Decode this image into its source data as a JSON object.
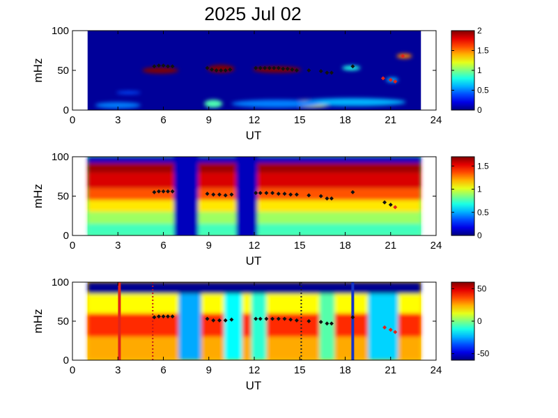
{
  "chart_data": {
    "title": "2025 Jul 02",
    "type": "heatmap",
    "panels": [
      {
        "id": "panel-1",
        "xlabel": "UT",
        "ylabel": "mHz",
        "xlim": [
          0,
          24
        ],
        "ylim": [
          0,
          100
        ],
        "xticks": [
          "0",
          "3",
          "6",
          "9",
          "12",
          "15",
          "18",
          "21",
          "24"
        ],
        "yticks": [
          "0",
          "50",
          "100"
        ],
        "colorbar": {
          "min": 0,
          "max": 2,
          "ticks": [
            "0",
            "0.5",
            "1",
            "1.5",
            "2"
          ]
        },
        "data_coverage_ut": [
          1,
          23
        ],
        "background_value": 0.05,
        "blobs": [
          {
            "x": 5.8,
            "y": 50,
            "w": 1.2,
            "h": 4,
            "v": 2.0
          },
          {
            "x": 9.8,
            "y": 52,
            "w": 0.9,
            "h": 5,
            "v": 2.0
          },
          {
            "x": 13.5,
            "y": 51,
            "w": 1.6,
            "h": 4,
            "v": 2.0
          },
          {
            "x": 9.3,
            "y": 8,
            "w": 0.6,
            "h": 5,
            "v": 0.9
          },
          {
            "x": 15.6,
            "y": 8,
            "w": 1.6,
            "h": 5,
            "v": 1.2
          },
          {
            "x": 18.5,
            "y": 10,
            "w": 3.5,
            "h": 5,
            "v": 0.6
          },
          {
            "x": 13.5,
            "y": 8,
            "w": 3.0,
            "h": 5,
            "v": 0.5
          },
          {
            "x": 3.0,
            "y": 6,
            "w": 1.5,
            "h": 4,
            "v": 0.5
          },
          {
            "x": 21.9,
            "y": 68,
            "w": 0.5,
            "h": 3,
            "v": 1.5
          },
          {
            "x": 18.4,
            "y": 53,
            "w": 0.6,
            "h": 3,
            "v": 0.8
          },
          {
            "x": 21.1,
            "y": 38,
            "w": 0.4,
            "h": 3,
            "v": 0.6
          },
          {
            "x": 3.7,
            "y": 22,
            "w": 0.8,
            "h": 2,
            "v": 0.4
          }
        ],
        "markers": [
          {
            "ut": 5.4,
            "f": 55
          },
          {
            "ut": 5.7,
            "f": 56
          },
          {
            "ut": 6.0,
            "f": 56
          },
          {
            "ut": 6.3,
            "f": 55
          },
          {
            "ut": 6.6,
            "f": 55
          },
          {
            "ut": 8.9,
            "f": 53
          },
          {
            "ut": 9.2,
            "f": 51
          },
          {
            "ut": 9.5,
            "f": 50
          },
          {
            "ut": 9.8,
            "f": 50
          },
          {
            "ut": 10.1,
            "f": 50
          },
          {
            "ut": 10.4,
            "f": 51
          },
          {
            "ut": 12.1,
            "f": 53
          },
          {
            "ut": 12.4,
            "f": 53
          },
          {
            "ut": 12.7,
            "f": 53
          },
          {
            "ut": 13.0,
            "f": 53
          },
          {
            "ut": 13.3,
            "f": 53
          },
          {
            "ut": 13.6,
            "f": 53
          },
          {
            "ut": 13.9,
            "f": 52
          },
          {
            "ut": 14.2,
            "f": 52
          },
          {
            "ut": 14.5,
            "f": 51
          },
          {
            "ut": 14.8,
            "f": 50
          },
          {
            "ut": 15.6,
            "f": 50
          },
          {
            "ut": 16.4,
            "f": 49
          },
          {
            "ut": 16.8,
            "f": 47
          },
          {
            "ut": 17.1,
            "f": 47
          },
          {
            "ut": 18.5,
            "f": 55
          },
          {
            "ut": 20.5,
            "f": 40,
            "c": "red"
          },
          {
            "ut": 21.0,
            "f": 38,
            "c": "red"
          },
          {
            "ut": 21.3,
            "f": 36,
            "c": "red"
          },
          {
            "ut": 21.8,
            "f": 68,
            "c": "red"
          }
        ]
      },
      {
        "id": "panel-2",
        "xlabel": "UT",
        "ylabel": "mHz",
        "xlim": [
          0,
          24
        ],
        "ylim": [
          0,
          100
        ],
        "xticks": [
          "0",
          "3",
          "6",
          "9",
          "12",
          "15",
          "18",
          "21",
          "24"
        ],
        "yticks": [
          "0",
          "50",
          "100"
        ],
        "colorbar": {
          "min": 0,
          "max": 1.7,
          "ticks": [
            "0",
            "0.5",
            "1",
            "1.5"
          ]
        },
        "data_coverage_ut": [
          1,
          23
        ],
        "background_value": 0.8,
        "bands": [
          {
            "f0": 0,
            "f1": 15,
            "v": 0.75
          },
          {
            "f0": 15,
            "f1": 30,
            "v": 0.9
          },
          {
            "f0": 30,
            "f1": 45,
            "v": 1.1
          },
          {
            "f0": 45,
            "f1": 60,
            "v": 1.35
          },
          {
            "f0": 60,
            "f1": 80,
            "v": 1.55
          },
          {
            "f0": 80,
            "f1": 92,
            "v": 1.65
          },
          {
            "f0": 92,
            "f1": 100,
            "v": 0.1
          }
        ],
        "gaps": [
          {
            "ut0": 6.7,
            "ut1": 8.3,
            "v": 0.1
          },
          {
            "ut0": 10.8,
            "ut1": 12.2,
            "v": 0.1
          }
        ],
        "markers": [
          {
            "ut": 5.4,
            "f": 55
          },
          {
            "ut": 5.7,
            "f": 56
          },
          {
            "ut": 6.0,
            "f": 56
          },
          {
            "ut": 6.3,
            "f": 56
          },
          {
            "ut": 6.6,
            "f": 56
          },
          {
            "ut": 8.9,
            "f": 53
          },
          {
            "ut": 9.3,
            "f": 52
          },
          {
            "ut": 9.7,
            "f": 52
          },
          {
            "ut": 10.1,
            "f": 51
          },
          {
            "ut": 10.5,
            "f": 52
          },
          {
            "ut": 12.1,
            "f": 54
          },
          {
            "ut": 12.4,
            "f": 54
          },
          {
            "ut": 12.8,
            "f": 54
          },
          {
            "ut": 13.2,
            "f": 54
          },
          {
            "ut": 13.6,
            "f": 53
          },
          {
            "ut": 14.0,
            "f": 53
          },
          {
            "ut": 14.4,
            "f": 52
          },
          {
            "ut": 14.8,
            "f": 52
          },
          {
            "ut": 15.6,
            "f": 51
          },
          {
            "ut": 16.4,
            "f": 50
          },
          {
            "ut": 16.8,
            "f": 47
          },
          {
            "ut": 17.1,
            "f": 47
          },
          {
            "ut": 18.5,
            "f": 55
          },
          {
            "ut": 20.6,
            "f": 42
          },
          {
            "ut": 21.0,
            "f": 39
          },
          {
            "ut": 21.3,
            "f": 36,
            "c": "red"
          }
        ]
      },
      {
        "id": "panel-3",
        "xlabel": "UT",
        "ylabel": "mHz",
        "xlim": [
          0,
          24
        ],
        "ylim": [
          0,
          100
        ],
        "xticks": [
          "0",
          "3",
          "6",
          "9",
          "12",
          "15",
          "18",
          "21",
          "24"
        ],
        "yticks": [
          "0",
          "50",
          "100"
        ],
        "colorbar": {
          "min": -60,
          "max": 60,
          "ticks": [
            "-50",
            "0",
            "50"
          ]
        },
        "data_coverage_ut": [
          1,
          23
        ],
        "background_value": 20,
        "bands": [
          {
            "f0": 0,
            "f1": 30,
            "v": 25
          },
          {
            "f0": 30,
            "f1": 60,
            "v": 40
          },
          {
            "f0": 60,
            "f1": 85,
            "v": 15
          },
          {
            "f0": 85,
            "f1": 100,
            "v": -58
          }
        ],
        "stripes": [
          {
            "ut0": 7.0,
            "ut1": 8.5,
            "v": -25
          },
          {
            "ut0": 10.0,
            "ut1": 11.2,
            "v": -15
          },
          {
            "ut0": 11.8,
            "ut1": 12.8,
            "v": -10
          },
          {
            "ut0": 16.3,
            "ut1": 17.3,
            "v": -5
          },
          {
            "ut0": 19.5,
            "ut1": 21.5,
            "v": -20
          }
        ],
        "vertical_lines": [
          {
            "ut": 3.1,
            "color": "#e0241b",
            "style": "solid"
          },
          {
            "ut": 5.3,
            "color": "#c0141b",
            "style": "dotted"
          },
          {
            "ut": 15.1,
            "color": "#222222",
            "style": "dotted"
          },
          {
            "ut": 18.5,
            "color": "#1434c8",
            "style": "solid"
          }
        ],
        "markers": [
          {
            "ut": 5.4,
            "f": 55
          },
          {
            "ut": 5.7,
            "f": 56
          },
          {
            "ut": 6.0,
            "f": 56
          },
          {
            "ut": 6.3,
            "f": 56
          },
          {
            "ut": 6.6,
            "f": 56
          },
          {
            "ut": 8.9,
            "f": 53
          },
          {
            "ut": 9.3,
            "f": 51
          },
          {
            "ut": 9.7,
            "f": 51
          },
          {
            "ut": 10.1,
            "f": 51
          },
          {
            "ut": 10.5,
            "f": 52
          },
          {
            "ut": 12.1,
            "f": 53
          },
          {
            "ut": 12.4,
            "f": 53
          },
          {
            "ut": 12.8,
            "f": 53
          },
          {
            "ut": 13.2,
            "f": 53
          },
          {
            "ut": 13.6,
            "f": 53
          },
          {
            "ut": 14.0,
            "f": 53
          },
          {
            "ut": 14.4,
            "f": 52
          },
          {
            "ut": 14.8,
            "f": 51
          },
          {
            "ut": 15.6,
            "f": 50
          },
          {
            "ut": 16.4,
            "f": 49
          },
          {
            "ut": 16.8,
            "f": 47
          },
          {
            "ut": 17.1,
            "f": 47
          },
          {
            "ut": 18.5,
            "f": 55
          },
          {
            "ut": 20.6,
            "f": 42,
            "c": "red"
          },
          {
            "ut": 21.0,
            "f": 39,
            "c": "red"
          },
          {
            "ut": 21.3,
            "f": 36,
            "c": "red"
          }
        ]
      }
    ]
  }
}
